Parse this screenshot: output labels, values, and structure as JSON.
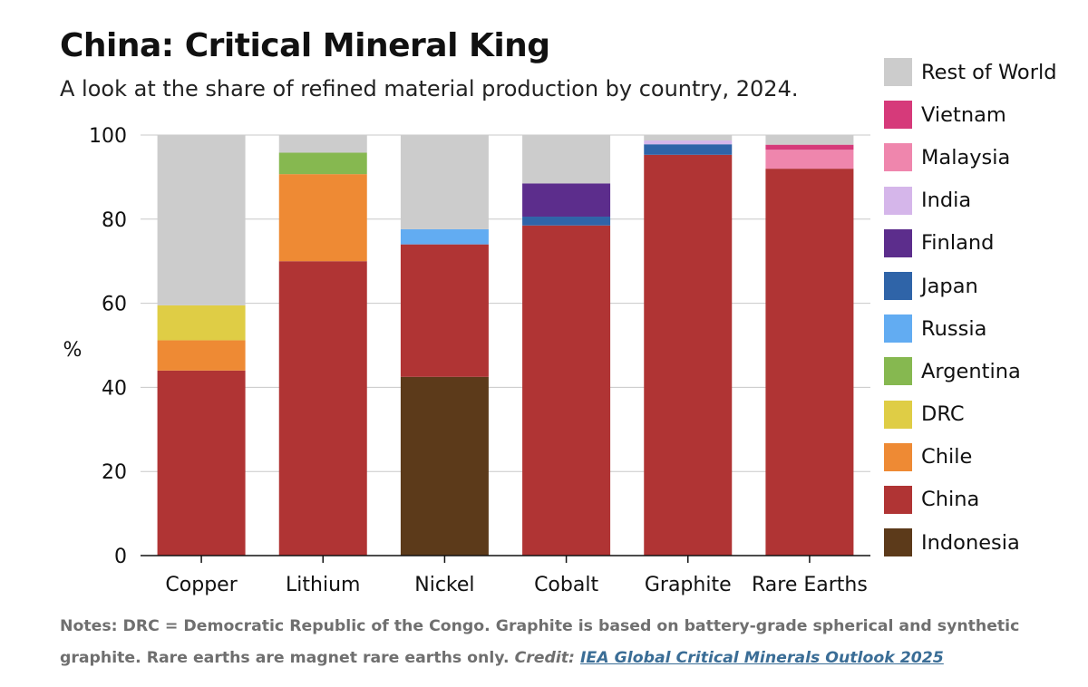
{
  "header": {
    "title": "China: Critical Mineral King",
    "subtitle": "A look at the share of refined material production by country, 2024."
  },
  "legend_items": [
    {
      "label": "Rest of World",
      "color": "#cccccc"
    },
    {
      "label": "Vietnam",
      "color": "#d63a7a"
    },
    {
      "label": "Malaysia",
      "color": "#ef86ad"
    },
    {
      "label": "India",
      "color": "#d5b6ea"
    },
    {
      "label": "Finland",
      "color": "#5c2d8c"
    },
    {
      "label": "Japan",
      "color": "#2f64a8"
    },
    {
      "label": "Russia",
      "color": "#62acf2"
    },
    {
      "label": "Argentina",
      "color": "#86b850"
    },
    {
      "label": "DRC",
      "color": "#dfcd45"
    },
    {
      "label": "Chile",
      "color": "#ee8a34"
    },
    {
      "label": "China",
      "color": "#b03434"
    },
    {
      "label": "Indonesia",
      "color": "#5c3a1a"
    }
  ],
  "notes": {
    "text": "Notes: DRC = Democratic Republic of the Congo. Graphite is based on battery-grade spherical and synthetic graphite. Rare earths are magnet rare earths only.",
    "credit_label": "Credit:",
    "credit_link": "IEA Global Critical Minerals Outlook 2025"
  },
  "chart_data": {
    "type": "bar",
    "stacked": true,
    "title": "China: Critical Mineral King",
    "subtitle": "A look at the share of refined material production by country, 2024.",
    "xlabel": "",
    "ylabel": "%",
    "ylim": [
      0,
      100
    ],
    "yticks": [
      "0",
      "20",
      "40",
      "60",
      "80",
      "100"
    ],
    "grid": true,
    "legend_position": "right",
    "categories": [
      "Copper",
      "Lithium",
      "Nickel",
      "Cobalt",
      "Graphite",
      "Rare Earths"
    ],
    "series": [
      {
        "name": "Indonesia",
        "color": "#5c3a1a",
        "values": [
          0,
          0,
          42.5,
          0,
          0,
          0
        ]
      },
      {
        "name": "China",
        "color": "#b03434",
        "values": [
          44,
          70,
          31.5,
          78.5,
          95.3,
          92
        ]
      },
      {
        "name": "Chile",
        "color": "#ee8a34",
        "values": [
          7.2,
          20.7,
          0,
          0,
          0,
          0
        ]
      },
      {
        "name": "DRC",
        "color": "#dfcd45",
        "values": [
          8.3,
          0,
          0,
          0,
          0,
          0
        ]
      },
      {
        "name": "Argentina",
        "color": "#86b850",
        "values": [
          0,
          5.1,
          0,
          0,
          0,
          0
        ]
      },
      {
        "name": "Russia",
        "color": "#62acf2",
        "values": [
          0,
          0,
          3.6,
          0,
          0,
          0
        ]
      },
      {
        "name": "Japan",
        "color": "#2f64a8",
        "values": [
          0,
          0,
          0,
          2.1,
          2.5,
          0
        ]
      },
      {
        "name": "Finland",
        "color": "#5c2d8c",
        "values": [
          0,
          0,
          0,
          7.9,
          0,
          0
        ]
      },
      {
        "name": "India",
        "color": "#d5b6ea",
        "values": [
          0,
          0,
          0,
          0,
          0.9,
          0
        ]
      },
      {
        "name": "Malaysia",
        "color": "#ef86ad",
        "values": [
          0,
          0,
          0,
          0,
          0,
          4.5
        ]
      },
      {
        "name": "Vietnam",
        "color": "#d63a7a",
        "values": [
          0,
          0,
          0,
          0,
          0,
          1.2
        ]
      },
      {
        "name": "Rest of World",
        "color": "#cccccc",
        "values": [
          40.5,
          4.2,
          22.4,
          11.5,
          1.3,
          2.3
        ]
      }
    ]
  }
}
